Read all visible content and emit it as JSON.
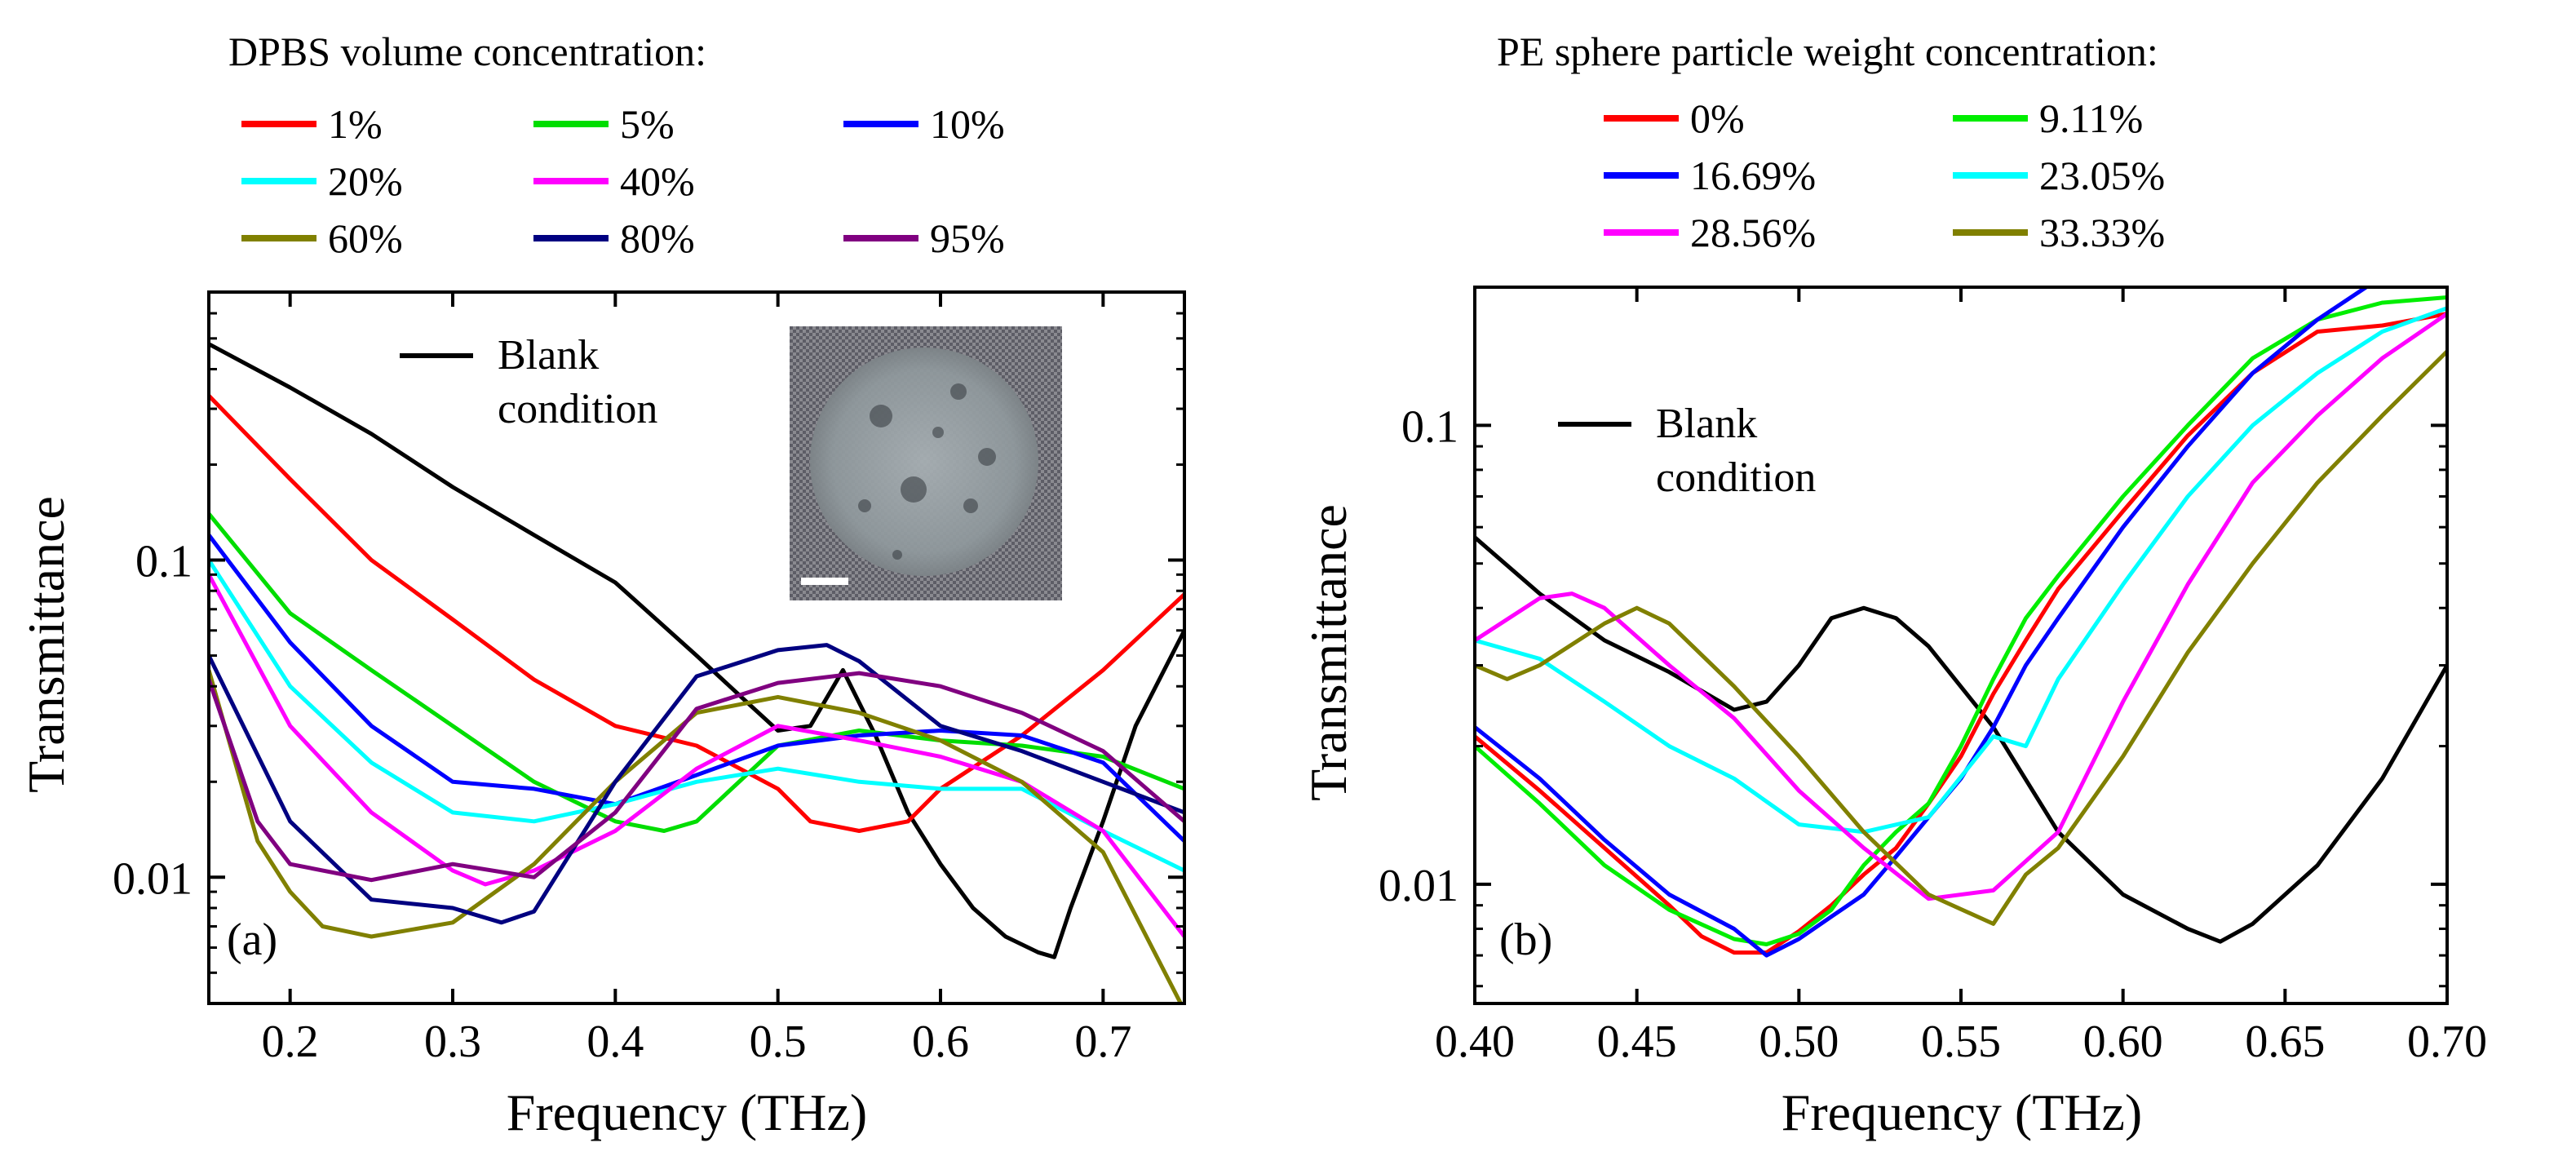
{
  "figure": {
    "panels": [
      "(a)",
      "(b)"
    ]
  },
  "chart_data": [
    {
      "type": "line",
      "panel_label": "(a)",
      "legend_title": "DPBS volume concentration:",
      "xlabel": "Frequency (THz)",
      "ylabel": "Transmittance",
      "yscale": "log",
      "xlim": [
        0.15,
        0.75
      ],
      "ylim": [
        0.004,
        0.7
      ],
      "xticks": [
        0.2,
        0.3,
        0.4,
        0.5,
        0.6,
        0.7
      ],
      "xtick_labels": [
        "0.2",
        "0.3",
        "0.4",
        "0.5",
        "0.6",
        "0.7"
      ],
      "yticks": [
        0.01,
        0.1
      ],
      "ytick_labels": [
        "0.01",
        "0.1"
      ],
      "annotation": {
        "text_lines": [
          "Blank",
          "condition"
        ]
      },
      "inset": {
        "description": "sample micrograph with scale bar"
      },
      "blank": {
        "name": "Blank condition",
        "color": "#000000",
        "x": [
          0.15,
          0.2,
          0.25,
          0.3,
          0.35,
          0.4,
          0.45,
          0.48,
          0.5,
          0.52,
          0.54,
          0.56,
          0.58,
          0.6,
          0.62,
          0.64,
          0.66,
          0.67,
          0.68,
          0.7,
          0.72,
          0.75
        ],
        "y": [
          0.48,
          0.35,
          0.25,
          0.17,
          0.12,
          0.085,
          0.05,
          0.036,
          0.029,
          0.03,
          0.045,
          0.028,
          0.016,
          0.011,
          0.008,
          0.0065,
          0.0058,
          0.0056,
          0.008,
          0.015,
          0.03,
          0.06
        ]
      },
      "series": [
        {
          "name": "1%",
          "color": "#ff0000",
          "x": [
            0.15,
            0.2,
            0.25,
            0.3,
            0.35,
            0.4,
            0.45,
            0.5,
            0.52,
            0.55,
            0.58,
            0.6,
            0.65,
            0.7,
            0.75
          ],
          "y": [
            0.33,
            0.18,
            0.1,
            0.065,
            0.042,
            0.03,
            0.026,
            0.019,
            0.015,
            0.014,
            0.015,
            0.019,
            0.028,
            0.045,
            0.078
          ]
        },
        {
          "name": "5%",
          "color": "#00dd00",
          "x": [
            0.15,
            0.2,
            0.25,
            0.3,
            0.35,
            0.4,
            0.43,
            0.45,
            0.5,
            0.55,
            0.6,
            0.65,
            0.7,
            0.75
          ],
          "y": [
            0.14,
            0.068,
            0.045,
            0.03,
            0.02,
            0.015,
            0.014,
            0.015,
            0.026,
            0.029,
            0.027,
            0.026,
            0.024,
            0.019
          ]
        },
        {
          "name": "10%",
          "color": "#0000ff",
          "x": [
            0.15,
            0.2,
            0.25,
            0.3,
            0.35,
            0.4,
            0.45,
            0.5,
            0.55,
            0.6,
            0.65,
            0.7,
            0.75
          ],
          "y": [
            0.12,
            0.055,
            0.03,
            0.02,
            0.019,
            0.017,
            0.021,
            0.026,
            0.028,
            0.029,
            0.028,
            0.023,
            0.013
          ]
        },
        {
          "name": "20%",
          "color": "#00ffff",
          "x": [
            0.15,
            0.2,
            0.25,
            0.3,
            0.35,
            0.4,
            0.45,
            0.5,
            0.55,
            0.6,
            0.65,
            0.7,
            0.75
          ],
          "y": [
            0.1,
            0.04,
            0.023,
            0.016,
            0.015,
            0.017,
            0.02,
            0.022,
            0.02,
            0.019,
            0.019,
            0.014,
            0.0105
          ]
        },
        {
          "name": "40%",
          "color": "#ff00ff",
          "x": [
            0.15,
            0.2,
            0.25,
            0.3,
            0.32,
            0.35,
            0.4,
            0.45,
            0.5,
            0.55,
            0.6,
            0.65,
            0.7,
            0.75
          ],
          "y": [
            0.09,
            0.03,
            0.016,
            0.0105,
            0.0095,
            0.0105,
            0.014,
            0.022,
            0.03,
            0.027,
            0.024,
            0.02,
            0.014,
            0.0065
          ]
        },
        {
          "name": "60%",
          "color": "#808000",
          "x": [
            0.15,
            0.18,
            0.2,
            0.22,
            0.25,
            0.3,
            0.35,
            0.4,
            0.45,
            0.5,
            0.55,
            0.6,
            0.65,
            0.7,
            0.75
          ],
          "y": [
            0.045,
            0.013,
            0.009,
            0.007,
            0.0065,
            0.0072,
            0.011,
            0.02,
            0.033,
            0.037,
            0.033,
            0.027,
            0.02,
            0.012,
            0.0038
          ]
        },
        {
          "name": "80%",
          "color": "#000080",
          "x": [
            0.15,
            0.2,
            0.25,
            0.3,
            0.33,
            0.35,
            0.4,
            0.45,
            0.5,
            0.53,
            0.55,
            0.6,
            0.65,
            0.7,
            0.75
          ],
          "y": [
            0.05,
            0.015,
            0.0085,
            0.008,
            0.0072,
            0.0078,
            0.02,
            0.043,
            0.052,
            0.054,
            0.048,
            0.03,
            0.025,
            0.02,
            0.016
          ]
        },
        {
          "name": "95%",
          "color": "#800080",
          "x": [
            0.15,
            0.18,
            0.2,
            0.25,
            0.3,
            0.35,
            0.4,
            0.45,
            0.5,
            0.55,
            0.6,
            0.65,
            0.7,
            0.75
          ],
          "y": [
            0.042,
            0.015,
            0.011,
            0.0098,
            0.011,
            0.01,
            0.016,
            0.034,
            0.041,
            0.044,
            0.04,
            0.033,
            0.025,
            0.015
          ]
        }
      ]
    },
    {
      "type": "line",
      "panel_label": "(b)",
      "legend_title": "PE sphere particle weight concentration:",
      "xlabel": "Frequency (THz)",
      "ylabel": "Transmittance",
      "yscale": "log",
      "xlim": [
        0.4,
        0.7
      ],
      "ylim": [
        0.0055,
        0.2
      ],
      "xticks": [
        0.4,
        0.45,
        0.5,
        0.55,
        0.6,
        0.65,
        0.7
      ],
      "xtick_labels": [
        "0.40",
        "0.45",
        "0.50",
        "0.55",
        "0.60",
        "0.65",
        "0.70"
      ],
      "yticks": [
        0.01,
        0.1
      ],
      "ytick_labels": [
        "0.01",
        "0.1"
      ],
      "annotation": {
        "text_lines": [
          "Blank",
          "condition"
        ]
      },
      "blank": {
        "name": "Blank condition",
        "color": "#000000",
        "x": [
          0.4,
          0.42,
          0.44,
          0.46,
          0.48,
          0.49,
          0.5,
          0.51,
          0.52,
          0.53,
          0.54,
          0.56,
          0.58,
          0.6,
          0.62,
          0.63,
          0.64,
          0.66,
          0.68,
          0.7
        ],
        "y": [
          0.057,
          0.043,
          0.034,
          0.029,
          0.024,
          0.025,
          0.03,
          0.038,
          0.04,
          0.038,
          0.033,
          0.022,
          0.013,
          0.0095,
          0.008,
          0.0075,
          0.0082,
          0.011,
          0.017,
          0.03
        ]
      },
      "series": [
        {
          "name": "0%",
          "color": "#ff0000",
          "x": [
            0.4,
            0.42,
            0.44,
            0.46,
            0.47,
            0.48,
            0.49,
            0.5,
            0.51,
            0.52,
            0.53,
            0.54,
            0.55,
            0.56,
            0.57,
            0.58,
            0.6,
            0.62,
            0.64,
            0.66,
            0.68,
            0.7
          ],
          "y": [
            0.021,
            0.016,
            0.012,
            0.009,
            0.0077,
            0.0071,
            0.0071,
            0.0079,
            0.009,
            0.0105,
            0.012,
            0.015,
            0.019,
            0.026,
            0.034,
            0.044,
            0.065,
            0.095,
            0.13,
            0.16,
            0.165,
            0.175
          ]
        },
        {
          "name": "9.11%",
          "color": "#00ee00",
          "x": [
            0.4,
            0.42,
            0.44,
            0.46,
            0.48,
            0.49,
            0.5,
            0.51,
            0.52,
            0.53,
            0.54,
            0.55,
            0.56,
            0.57,
            0.58,
            0.6,
            0.62,
            0.64,
            0.66,
            0.68,
            0.7
          ],
          "y": [
            0.02,
            0.015,
            0.011,
            0.0088,
            0.0076,
            0.0074,
            0.0078,
            0.0088,
            0.011,
            0.013,
            0.015,
            0.02,
            0.028,
            0.038,
            0.047,
            0.07,
            0.1,
            0.14,
            0.17,
            0.185,
            0.19
          ]
        },
        {
          "name": "16.69%",
          "color": "#0000ff",
          "x": [
            0.4,
            0.42,
            0.44,
            0.46,
            0.48,
            0.49,
            0.5,
            0.51,
            0.52,
            0.53,
            0.54,
            0.55,
            0.56,
            0.57,
            0.58,
            0.6,
            0.62,
            0.64,
            0.66,
            0.675
          ],
          "y": [
            0.022,
            0.017,
            0.0125,
            0.0095,
            0.008,
            0.007,
            0.0076,
            0.0085,
            0.0095,
            0.0115,
            0.014,
            0.017,
            0.022,
            0.03,
            0.038,
            0.06,
            0.09,
            0.13,
            0.17,
            0.2
          ]
        },
        {
          "name": "23.05%",
          "color": "#00ffff",
          "x": [
            0.4,
            0.42,
            0.44,
            0.46,
            0.48,
            0.5,
            0.52,
            0.54,
            0.56,
            0.57,
            0.58,
            0.6,
            0.62,
            0.64,
            0.66,
            0.68,
            0.7
          ],
          "y": [
            0.034,
            0.031,
            0.025,
            0.02,
            0.017,
            0.0135,
            0.013,
            0.014,
            0.021,
            0.02,
            0.028,
            0.045,
            0.07,
            0.1,
            0.13,
            0.16,
            0.18
          ]
        },
        {
          "name": "28.56%",
          "color": "#ff00ff",
          "x": [
            0.4,
            0.42,
            0.43,
            0.44,
            0.46,
            0.48,
            0.5,
            0.52,
            0.54,
            0.56,
            0.58,
            0.6,
            0.62,
            0.64,
            0.66,
            0.68,
            0.7
          ],
          "y": [
            0.034,
            0.042,
            0.043,
            0.04,
            0.03,
            0.023,
            0.016,
            0.012,
            0.0093,
            0.0097,
            0.013,
            0.025,
            0.045,
            0.075,
            0.105,
            0.14,
            0.175
          ]
        },
        {
          "name": "33.33%",
          "color": "#808000",
          "x": [
            0.4,
            0.41,
            0.42,
            0.44,
            0.45,
            0.46,
            0.48,
            0.5,
            0.52,
            0.54,
            0.56,
            0.57,
            0.58,
            0.6,
            0.62,
            0.64,
            0.66,
            0.68,
            0.7
          ],
          "y": [
            0.03,
            0.028,
            0.03,
            0.037,
            0.04,
            0.037,
            0.027,
            0.019,
            0.013,
            0.0095,
            0.0082,
            0.0105,
            0.012,
            0.019,
            0.032,
            0.05,
            0.075,
            0.105,
            0.145
          ]
        }
      ]
    }
  ]
}
